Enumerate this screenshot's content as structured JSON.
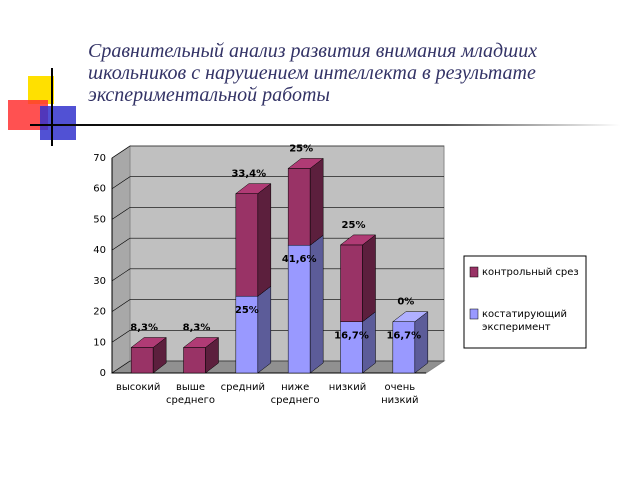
{
  "chart_data": {
    "type": "bar3d_stacked",
    "title": "Сравнительный анализ развития внимания младших школьников с нарушением интеллекта в результате экспериментальной работы",
    "categories": [
      "высокий",
      "выше среднего",
      "средний",
      "ниже среднего",
      "низкий",
      "очень низкий"
    ],
    "series": [
      {
        "name": "костатирующий эксперимент",
        "color": "#9999ff",
        "values": [
          0,
          0,
          25,
          41.6,
          16.7,
          16.7
        ],
        "value_labels": [
          null,
          null,
          "25%",
          "41,6%",
          "16,7%",
          "16,7%"
        ]
      },
      {
        "name": "контрольный срез",
        "color": "#993366",
        "values": [
          8.3,
          8.3,
          33.4,
          25,
          25,
          0
        ],
        "value_labels": [
          "8,3%",
          "8,3%",
          "33,4%",
          "25%",
          "25%",
          "0%"
        ]
      }
    ],
    "ylim": [
      0,
      70
    ],
    "yticks": [
      0,
      10,
      20,
      30,
      40,
      50,
      60,
      70
    ],
    "grid": true,
    "legend": "right"
  }
}
